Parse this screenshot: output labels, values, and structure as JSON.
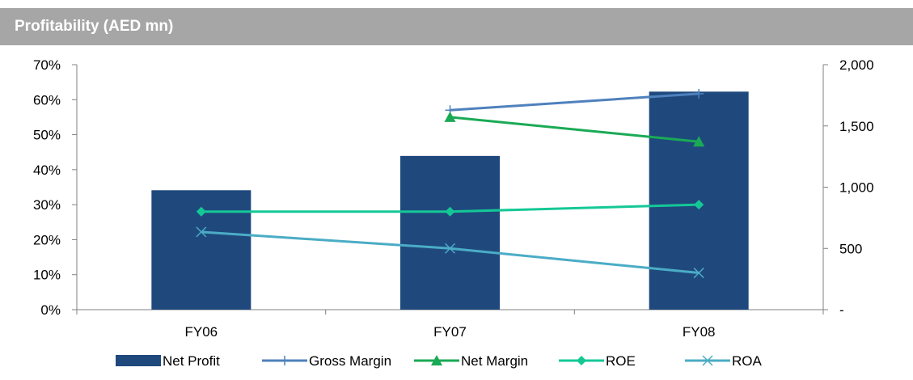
{
  "header": {
    "title": "Profitability (AED mn)"
  },
  "chart_data": {
    "type": "bar+line",
    "categories": [
      "FY06",
      "FY07",
      "FY08"
    ],
    "left_axis": {
      "ylim": [
        0,
        0.7
      ],
      "ticks": [
        0,
        0.1,
        0.2,
        0.3,
        0.4,
        0.5,
        0.6,
        0.7
      ],
      "tick_labels": [
        "0%",
        "10%",
        "20%",
        "30%",
        "40%",
        "50%",
        "60%",
        "70%"
      ]
    },
    "right_axis": {
      "ylim": [
        0,
        2000
      ],
      "ticks": [
        0,
        500,
        1000,
        1500,
        2000
      ],
      "tick_labels": [
        "-",
        "500",
        "1,000",
        "1,500",
        "2,000"
      ]
    },
    "series": [
      {
        "name": "Net Profit",
        "type": "bar",
        "axis": "right",
        "color": "#1f497d",
        "values": [
          975,
          1255,
          1780
        ]
      },
      {
        "name": "Gross Margin",
        "type": "line",
        "axis": "left",
        "color": "#4f81bd",
        "marker": "plus",
        "values": [
          null,
          0.57,
          0.617
        ]
      },
      {
        "name": "Net Margin",
        "type": "line",
        "axis": "left",
        "color": "#1aaa55",
        "marker": "triangle",
        "values": [
          null,
          0.55,
          0.48
        ]
      },
      {
        "name": "ROE",
        "type": "line",
        "axis": "left",
        "color": "#14c896",
        "marker": "diamond",
        "values": [
          0.28,
          0.28,
          0.3
        ]
      },
      {
        "name": "ROA",
        "type": "line",
        "axis": "left",
        "color": "#4bacc6",
        "marker": "x",
        "values": [
          0.222,
          0.175,
          0.105
        ]
      }
    ],
    "grid": false,
    "legend_position": "bottom"
  }
}
